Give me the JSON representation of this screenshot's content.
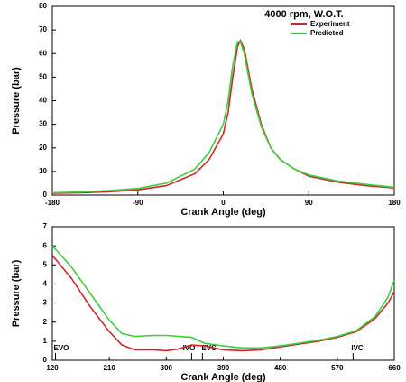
{
  "chart_data": [
    {
      "type": "line",
      "title": "4000 rpm,  W.O.T.",
      "xlabel": "Crank Angle (deg)",
      "ylabel": "Pressure (bar)",
      "x": [
        -180,
        -150,
        -120,
        -90,
        -60,
        -30,
        -15,
        0,
        5,
        10,
        15,
        18,
        22,
        30,
        40,
        50,
        60,
        75,
        90,
        120,
        150,
        180
      ],
      "series": [
        {
          "name": "Experiment",
          "color": "#d0262a",
          "values": [
            0.8,
            1.0,
            1.4,
            2.2,
            4,
            9,
            15,
            26,
            35,
            50,
            63,
            65.5,
            62,
            45,
            30,
            20,
            15,
            11,
            8,
            5.5,
            4,
            3
          ]
        },
        {
          "name": "Predicted",
          "color": "#3ccf3c",
          "values": [
            1.0,
            1.3,
            1.9,
            2.8,
            5,
            11,
            18,
            30,
            40,
            55,
            65,
            65,
            60,
            43,
            29,
            20,
            15,
            11,
            8.5,
            6,
            4.5,
            3.3
          ]
        }
      ],
      "xlim": [
        -180,
        180
      ],
      "xticks": [
        -180,
        -90,
        0,
        90,
        180
      ],
      "ylim": [
        0,
        80
      ],
      "yticks": [
        0,
        10,
        20,
        30,
        40,
        50,
        60,
        70,
        80
      ],
      "legend": "upper right"
    },
    {
      "type": "line",
      "xlabel": "Crank Angle (deg)",
      "ylabel": "Pressure (bar)",
      "x": [
        120,
        150,
        180,
        210,
        230,
        250,
        280,
        300,
        320,
        340,
        360,
        390,
        420,
        450,
        480,
        510,
        540,
        570,
        600,
        630,
        650,
        660
      ],
      "series": [
        {
          "color": "#d0262a",
          "values": [
            5.5,
            4.3,
            2.8,
            1.5,
            0.8,
            0.55,
            0.55,
            0.5,
            0.6,
            0.8,
            0.75,
            0.55,
            0.5,
            0.55,
            0.7,
            0.85,
            1.0,
            1.2,
            1.5,
            2.2,
            3.0,
            3.6
          ]
        },
        {
          "color": "#3ccf3c",
          "values": [
            6.0,
            4.9,
            3.5,
            2.1,
            1.4,
            1.25,
            1.3,
            1.3,
            1.25,
            1.2,
            0.9,
            0.75,
            0.65,
            0.65,
            0.75,
            0.9,
            1.05,
            1.25,
            1.55,
            2.3,
            3.3,
            4.2
          ]
        }
      ],
      "events": [
        {
          "label": "EVO",
          "x": 125
        },
        {
          "label": "IVO",
          "x": 340
        },
        {
          "label": "EVC",
          "x": 357
        },
        {
          "label": "IVC",
          "x": 595
        }
      ],
      "xlim": [
        120,
        660
      ],
      "xticks": [
        120,
        210,
        300,
        390,
        480,
        570,
        660
      ],
      "ylim": [
        0,
        7
      ],
      "yticks": [
        0,
        1,
        2,
        3,
        4,
        5,
        6,
        7
      ]
    }
  ]
}
